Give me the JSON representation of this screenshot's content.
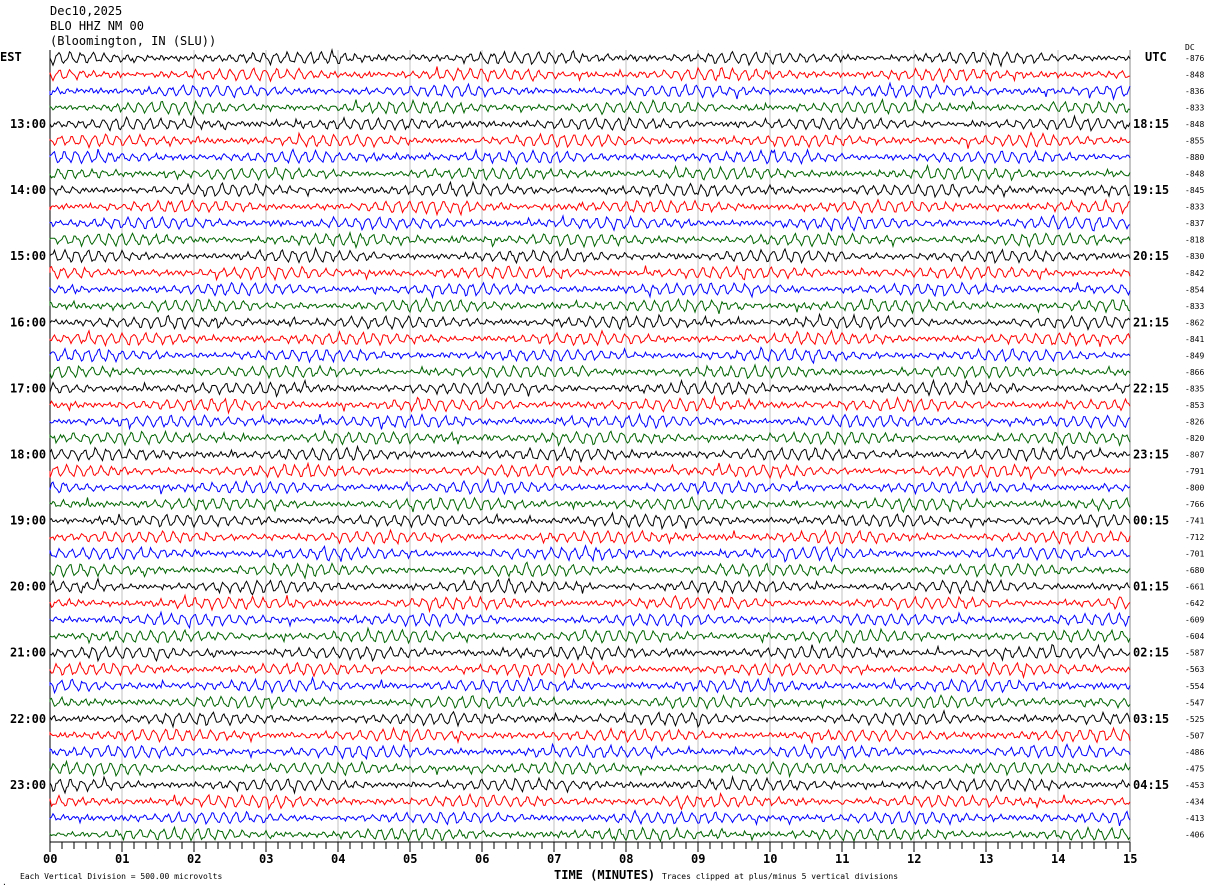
{
  "header": {
    "date": "Dec10,2025",
    "station": "BLO HHZ NM 00",
    "location": "(Bloomington, IN (SLU))"
  },
  "chart_data": {
    "type": "line",
    "title": "",
    "left_timezone": "EST",
    "right_timezone": "UTC",
    "dc_label": "DC",
    "xlabel": "TIME (MINUTES)",
    "xlim": [
      0,
      15
    ],
    "x_ticks": [
      "00",
      "01",
      "02",
      "03",
      "04",
      "05",
      "06",
      "07",
      "08",
      "09",
      "10",
      "11",
      "12",
      "13",
      "14",
      "15"
    ],
    "left_hour_labels": [
      "13:00",
      "14:00",
      "15:00",
      "16:00",
      "17:00",
      "18:00",
      "19:00",
      "20:00",
      "21:00",
      "22:00",
      "23:00"
    ],
    "right_hour_labels": [
      "18:15",
      "19:15",
      "20:15",
      "21:15",
      "22:15",
      "23:15",
      "00:15",
      "01:15",
      "02:15",
      "03:15",
      "04:15"
    ],
    "trace_colors": [
      "#000000",
      "#ff0000",
      "#0000ff",
      "#006400"
    ],
    "dc_offsets": [
      -876,
      -848,
      -836,
      -833,
      -848,
      -855,
      -880,
      -848,
      -845,
      -833,
      -837,
      -818,
      -830,
      -842,
      -854,
      -833,
      -862,
      -841,
      -849,
      -866,
      -835,
      -853,
      -826,
      -820,
      -807,
      -791,
      -800,
      -766,
      -741,
      -712,
      -701,
      -680,
      -661,
      -642,
      -609,
      -604,
      -587,
      -563,
      -554,
      -547,
      -525,
      -507,
      -486,
      -475,
      -453,
      -434,
      -413,
      -406
    ],
    "scale_note": "Each Vertical Division =  500.00 microvolts",
    "clip_note": "Traces clipped at plus/minus 5 vertical divisions"
  }
}
